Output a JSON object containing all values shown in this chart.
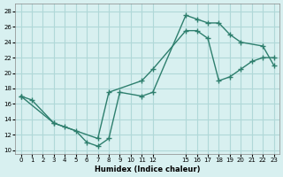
{
  "line1_x": [
    0,
    1,
    3,
    4,
    5,
    6,
    7,
    8,
    9,
    11,
    12,
    15,
    16,
    17,
    18,
    19,
    20,
    22,
    23
  ],
  "line1_y": [
    17,
    16.5,
    13.5,
    13,
    12.5,
    11,
    10.5,
    11.5,
    17.5,
    17,
    17.5,
    27.5,
    27,
    26.5,
    26.5,
    25,
    24,
    23.5,
    21
  ],
  "line2_x": [
    0,
    3,
    7,
    8,
    11,
    12,
    15,
    16,
    17,
    18,
    19,
    20,
    21,
    22,
    23
  ],
  "line2_y": [
    17,
    13.5,
    11.5,
    17.5,
    19,
    20.5,
    25.5,
    25.5,
    24.5,
    19,
    19.5,
    20.5,
    21.5,
    22,
    22
  ],
  "line_color": "#2e7f6e",
  "bg_color": "#d8f0f0",
  "grid_color": "#b0d8d8",
  "xlabel": "Humidex (Indice chaleur)",
  "xticks": [
    0,
    1,
    2,
    3,
    4,
    5,
    6,
    7,
    8,
    9,
    10,
    11,
    12,
    15,
    16,
    17,
    18,
    19,
    20,
    21,
    22,
    23
  ],
  "yticks": [
    10,
    12,
    14,
    16,
    18,
    20,
    22,
    24,
    26,
    28
  ],
  "xlim": [
    -0.5,
    23.5
  ],
  "ylim": [
    9.5,
    29
  ]
}
